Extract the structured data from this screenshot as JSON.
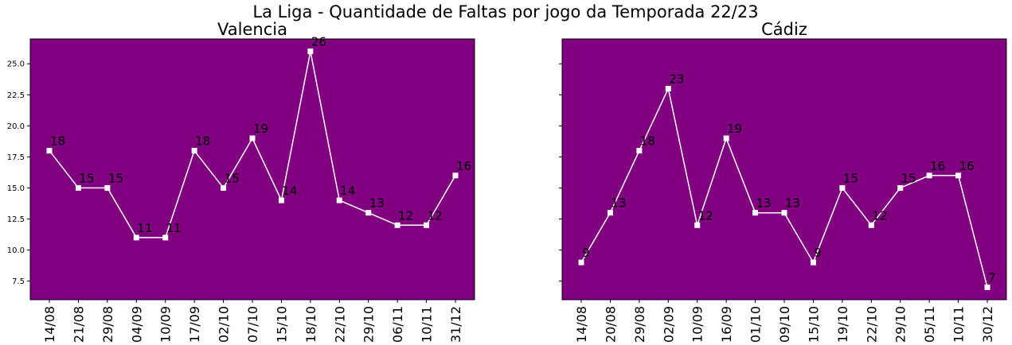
{
  "suptitle": "La Liga - Quantidade de Faltas por jogo da Temporada 22/23",
  "colors": {
    "panel_bg": "#800080",
    "line": "#ffffff",
    "marker": "#ffffff",
    "label_text": "#000000",
    "axis": "#000000"
  },
  "chart_data": [
    {
      "type": "line",
      "title": "Valencia",
      "xlabel": "",
      "ylabel": "",
      "ylim": [
        6.0,
        27.0
      ],
      "yticks": [
        "7.5",
        "10.0",
        "12.5",
        "15.0",
        "17.5",
        "20.0",
        "22.5",
        "25.0"
      ],
      "categories": [
        "14/08",
        "21/08",
        "29/08",
        "04/09",
        "10/09",
        "17/09",
        "02/10",
        "07/10",
        "15/10",
        "18/10",
        "22/10",
        "29/10",
        "06/11",
        "10/11",
        "31/12"
      ],
      "values": [
        18,
        15,
        15,
        11,
        11,
        18,
        15,
        19,
        14,
        26,
        14,
        13,
        12,
        12,
        16
      ],
      "value_labels": [
        "18",
        "15",
        "15",
        "11",
        "11",
        "18",
        "15",
        "19",
        "14",
        "26",
        "14",
        "13",
        "12",
        "12",
        "16"
      ],
      "marker": "square",
      "grid": false,
      "legend": "none"
    },
    {
      "type": "line",
      "title": "Cádiz",
      "xlabel": "",
      "ylabel": "",
      "ylim": [
        6.0,
        27.0
      ],
      "yticks": [
        "7.5",
        "10.0",
        "12.5",
        "15.0",
        "17.5",
        "20.0",
        "22.5",
        "25.0"
      ],
      "categories": [
        "14/08",
        "20/08",
        "29/08",
        "02/09",
        "10/09",
        "16/09",
        "01/10",
        "09/10",
        "15/10",
        "19/10",
        "22/10",
        "29/10",
        "05/11",
        "10/11",
        "30/12"
      ],
      "values": [
        9,
        13,
        18,
        23,
        12,
        19,
        13,
        13,
        9,
        15,
        12,
        15,
        16,
        16,
        7
      ],
      "value_labels": [
        "9",
        "13",
        "18",
        "23",
        "12",
        "19",
        "13",
        "13",
        "9",
        "15",
        "12",
        "15",
        "16",
        "16",
        "7"
      ],
      "marker": "square",
      "grid": false,
      "legend": "none"
    }
  ]
}
